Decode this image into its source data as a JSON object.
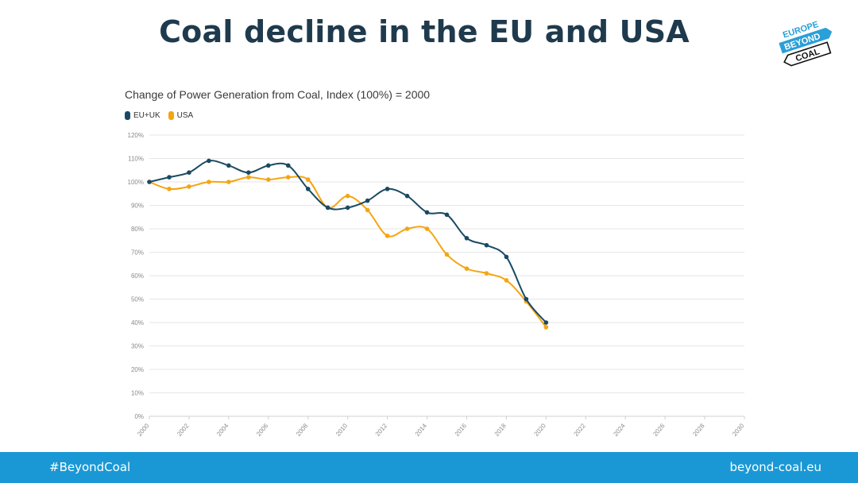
{
  "page": {
    "title": "Coal decline in the EU and USA",
    "footer_left": "#BeyondCoal",
    "footer_right": "beyond-coal.eu",
    "logo_text": [
      "EUROPE",
      "BEYOND",
      "COAL"
    ]
  },
  "colors": {
    "title": "#1f3a4d",
    "eu_uk": "#1a4a63",
    "usa": "#f5a511",
    "footer": "#1a98d5",
    "grid": "#e6e6e6",
    "logo_blue": "#2a9fd8"
  },
  "chart_data": {
    "type": "line",
    "title": "Change of Power Generation from Coal, Index (100%) = 2000",
    "xlabel": "",
    "ylabel": "",
    "x": [
      2000,
      2001,
      2002,
      2003,
      2004,
      2005,
      2006,
      2007,
      2008,
      2009,
      2010,
      2011,
      2012,
      2013,
      2014,
      2015,
      2016,
      2017,
      2018,
      2019,
      2020
    ],
    "xlim": [
      2000,
      2030
    ],
    "ylim": [
      0,
      120
    ],
    "x_ticks": [
      "2000",
      "2002",
      "2004",
      "2006",
      "2008",
      "2010",
      "2012",
      "2014",
      "2016",
      "2018",
      "2020",
      "2022",
      "2024",
      "2026",
      "2028",
      "2030"
    ],
    "y_ticks": [
      "0%",
      "10%",
      "20%",
      "30%",
      "40%",
      "50%",
      "60%",
      "70%",
      "80%",
      "90%",
      "100%",
      "110%",
      "120%"
    ],
    "grid": true,
    "legend_position": "top-left",
    "series": [
      {
        "name": "EU+UK",
        "color": "#1a4a63",
        "values": [
          100,
          102,
          104,
          109,
          107,
          104,
          107,
          107,
          97,
          89,
          89,
          92,
          97,
          94,
          87,
          86,
          76,
          73,
          68,
          50,
          40
        ]
      },
      {
        "name": "USA",
        "color": "#f5a511",
        "values": [
          100,
          97,
          98,
          100,
          100,
          102,
          101,
          102,
          101,
          89,
          94,
          88,
          77,
          80,
          80,
          69,
          63,
          61,
          58,
          49,
          38
        ]
      }
    ]
  }
}
